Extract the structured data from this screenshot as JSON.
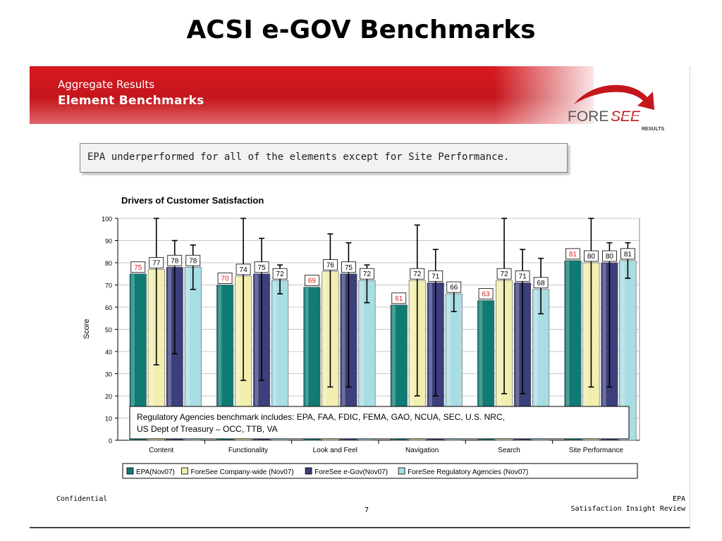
{
  "page": {
    "title": "ACSI e-GOV Benchmarks"
  },
  "header": {
    "subtitle": "Aggregate Results",
    "title": "Element Benchmarks"
  },
  "logo": {
    "brand_left": "FORE",
    "brand_right": "SEE",
    "tagline": "RESULTS",
    "brand_color": "#c4161c"
  },
  "callout": {
    "text": "EPA underperformed for all of the elements except for Site Performance."
  },
  "footer": {
    "left": "Confidential",
    "page_number": "7",
    "right_line1": "EPA",
    "right_line2": "Satisfaction Insight Review"
  },
  "chart_data": {
    "type": "bar",
    "title": "Drivers of Customer Satisfaction",
    "ylabel": "Score",
    "xlabel": "",
    "ylim": [
      0,
      100
    ],
    "yticks": [
      0,
      10,
      20,
      30,
      40,
      50,
      60,
      70,
      80,
      90,
      100
    ],
    "categories": [
      "Content",
      "Functionality",
      "Look and Feel",
      "Navigation",
      "Search",
      "Site Performance"
    ],
    "series": [
      {
        "name": "EPA(Nov07)",
        "color": "#0f7b73",
        "label_color": "#e02020",
        "values": [
          75,
          70,
          69,
          61,
          63,
          81
        ],
        "error_low": null,
        "error_high": null
      },
      {
        "name": "ForeSee Company-wide (Nov07)",
        "color": "#f2eeb0",
        "label_color": "#000000",
        "values": [
          77,
          74,
          76,
          72,
          72,
          80
        ],
        "error_low": [
          34,
          27,
          24,
          20,
          21,
          24
        ],
        "error_high": [
          100,
          100,
          93,
          97,
          100,
          100
        ]
      },
      {
        "name": "ForeSee e-Gov(Nov07)",
        "color": "#3b3f7a",
        "label_color": "#000000",
        "values": [
          78,
          75,
          75,
          71,
          71,
          80
        ],
        "error_low": [
          39,
          27,
          24,
          20,
          21,
          24
        ],
        "error_high": [
          90,
          91,
          89,
          86,
          86,
          89
        ]
      },
      {
        "name": "ForeSee Regulatory Agencies (Nov07)",
        "color": "#a8dde3",
        "label_color": "#000000",
        "values": [
          78,
          72,
          72,
          66,
          68,
          81
        ],
        "error_low": [
          68,
          66,
          62,
          58,
          57,
          73
        ],
        "error_high": [
          88,
          79,
          79,
          71,
          82,
          89
        ]
      }
    ],
    "annotation": "Regulatory Agencies benchmark includes: EPA, FAA, FDIC, FEMA, GAO, NCUA, SEC, U.S. NRC, US Dept of Treasury – OCC, TTB, VA",
    "legend_position": "bottom",
    "grid": true
  }
}
